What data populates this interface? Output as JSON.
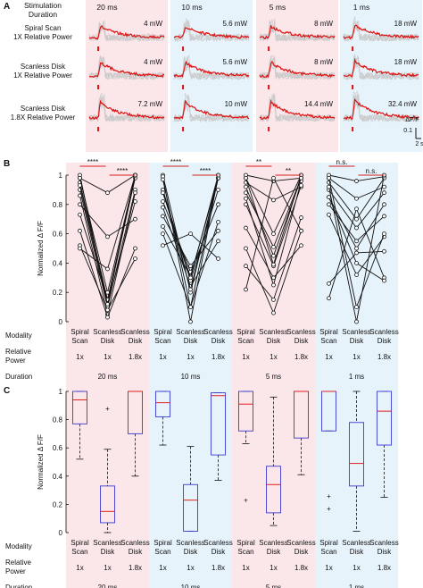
{
  "panel_letters": [
    "A",
    "B",
    "C"
  ],
  "band_colors": [
    "#fbe6ea",
    "#e6f3fb",
    "#fbe6ea",
    "#e6f3fb"
  ],
  "panel_a": {
    "header": [
      "Stimulation",
      "Duration"
    ],
    "durations": [
      "20 ms",
      "10 ms",
      "5 ms",
      "1 ms"
    ],
    "rows": [
      {
        "label": [
          "Spiral Scan",
          "1X Relative Power"
        ],
        "powers": [
          "4 mW",
          "5.6 mW",
          "8 mW",
          "18 mW"
        ]
      },
      {
        "label": [
          "Scanless Disk",
          "1X Relative Power"
        ],
        "powers": [
          "4 mW",
          "5.6 mW",
          "8 mW",
          "18 mW"
        ]
      },
      {
        "label": [
          "Scanless Disk",
          "1.8X Relative Power"
        ],
        "powers": [
          "7.2 mW",
          "10 mW",
          "14.4 mW",
          "32.4 mW"
        ]
      }
    ],
    "scale_y": "ΔF/F",
    "scale_y_value": "0.1",
    "scale_x": "2 s",
    "trace_color": "#dd1111",
    "bg_trace_color": "#c9c9c9"
  },
  "footer": {
    "modality_label": "Modality",
    "relpower_label": [
      "Relative",
      "Power"
    ],
    "duration_label": "Duration",
    "modality": [
      [
        "Spiral",
        "Scan"
      ],
      [
        "Scanless",
        "Disk"
      ],
      [
        "Scanless",
        "Disk"
      ]
    ],
    "relpower": [
      "1x",
      "1x",
      "1.8x"
    ],
    "durations": [
      "20 ms",
      "10 ms",
      "5 ms",
      "1 ms"
    ]
  },
  "chart_data": [
    {
      "type": "line",
      "title": "",
      "ylabel": "Normalized Δ F/F",
      "ylim": [
        0,
        1
      ],
      "yticks": [
        0,
        0.2,
        0.4,
        0.6,
        0.8,
        1
      ],
      "groups": [
        "20 ms",
        "10 ms",
        "5 ms",
        "1 ms"
      ],
      "categories": [
        "Spiral Scan",
        "Scanless Disk 1x",
        "Scanless Disk 1.8x"
      ],
      "significance": [
        {
          "group": "20 ms",
          "pairs": [
            [
              "****",
              0,
              1
            ],
            [
              "****",
              1,
              2
            ]
          ]
        },
        {
          "group": "10 ms",
          "pairs": [
            [
              "****",
              0,
              1
            ],
            [
              "****",
              1,
              2
            ]
          ]
        },
        {
          "group": "5 ms",
          "pairs": [
            [
              "**",
              0,
              1
            ],
            [
              "**",
              1,
              2
            ]
          ]
        },
        {
          "group": "1 ms",
          "pairs": [
            [
              "n.s.",
              0,
              1
            ],
            [
              "n.s.",
              1,
              2
            ]
          ]
        }
      ],
      "cells": [
        [
          [
            1.0,
            0.12,
            1.0
          ],
          [
            0.98,
            0.88,
            1.0
          ],
          [
            0.95,
            0.15,
            0.98
          ],
          [
            0.9,
            0.1,
            0.9
          ],
          [
            0.86,
            0.05,
            0.88
          ],
          [
            0.8,
            0.58,
            0.7
          ],
          [
            0.73,
            0.15,
            1.0
          ],
          [
            0.62,
            0.03,
            0.5
          ],
          [
            0.52,
            0.08,
            0.43
          ],
          [
            0.98,
            0.2,
            1.0
          ],
          [
            0.93,
            0.12,
            0.82
          ],
          [
            0.5,
            0.36,
            1.0
          ]
        ],
        [
          [
            1.0,
            0.2,
            0.98
          ],
          [
            0.99,
            0.0,
            1.0
          ],
          [
            0.97,
            0.1,
            0.98
          ],
          [
            0.9,
            0.28,
            0.9
          ],
          [
            0.82,
            0.34,
            0.8
          ],
          [
            0.78,
            0.24,
            0.55
          ],
          [
            0.72,
            0.38,
            0.62
          ],
          [
            0.65,
            0.31,
            0.98
          ],
          [
            0.52,
            0.6,
            0.43
          ],
          [
            0.9,
            0.22,
            0.98
          ],
          [
            0.88,
            0.3,
            1.0
          ],
          [
            0.6,
            0.1,
            0.68
          ]
        ],
        [
          [
            1.0,
            0.96,
            0.98
          ],
          [
            0.98,
            0.6,
            1.0
          ],
          [
            0.95,
            0.83,
            0.92
          ],
          [
            0.88,
            0.51,
            0.98
          ],
          [
            0.84,
            0.25,
            0.96
          ],
          [
            0.8,
            0.38,
            0.93
          ],
          [
            0.64,
            0.3,
            0.52
          ],
          [
            0.5,
            0.06,
            0.62
          ],
          [
            0.38,
            0.15,
            0.71
          ],
          [
            0.22,
            0.98,
            0.62
          ],
          [
            0.98,
            0.39,
            1.0
          ],
          [
            0.92,
            0.45,
            0.98
          ]
        ],
        [
          [
            1.0,
            0.96,
            0.99
          ],
          [
            0.98,
            0.84,
            0.92
          ],
          [
            0.95,
            0.7,
            0.98
          ],
          [
            0.9,
            0.64,
            0.88
          ],
          [
            0.85,
            0.5,
            0.8
          ],
          [
            0.8,
            0.55,
            0.72
          ],
          [
            0.73,
            0.32,
            0.58
          ],
          [
            0.26,
            0.47,
            0.48
          ],
          [
            0.16,
            0.77,
            0.3
          ],
          [
            0.98,
            0.1,
            0.6
          ],
          [
            0.92,
            0.0,
            1.0
          ],
          [
            0.85,
            0.4,
            0.28
          ]
        ]
      ]
    },
    {
      "type": "box",
      "title": "",
      "ylabel": "Normalized Δ F/F",
      "ylim": [
        0,
        1
      ],
      "yticks": [
        0,
        0.2,
        0.4,
        0.6,
        0.8,
        1
      ],
      "groups": [
        "20 ms",
        "10 ms",
        "5 ms",
        "1 ms"
      ],
      "categories": [
        "Spiral Scan",
        "Scanless Disk 1x",
        "Scanless Disk 1.8x"
      ],
      "box_color": "#3a3ad0",
      "median_color": "#e02020",
      "boxes": [
        [
          {
            "wl": 0.52,
            "q1": 0.77,
            "med": 0.94,
            "q3": 1.0,
            "wh": 1.0,
            "out": []
          },
          {
            "wl": 0.0,
            "q1": 0.07,
            "med": 0.15,
            "q3": 0.33,
            "wh": 0.59,
            "out": [
              0.88
            ]
          },
          {
            "wl": 0.4,
            "q1": 0.7,
            "med": 1.0,
            "q3": 1.0,
            "wh": 1.0,
            "out": []
          }
        ],
        [
          {
            "wl": 0.62,
            "q1": 0.82,
            "med": 0.92,
            "q3": 1.0,
            "wh": 1.0,
            "out": []
          },
          {
            "wl": 0.01,
            "q1": 0.01,
            "med": 0.23,
            "q3": 0.34,
            "wh": 0.61,
            "out": []
          },
          {
            "wl": 0.37,
            "q1": 0.55,
            "med": 0.97,
            "q3": 0.99,
            "wh": 0.99,
            "out": []
          }
        ],
        [
          {
            "wl": 0.63,
            "q1": 0.72,
            "med": 0.91,
            "q3": 1.0,
            "wh": 1.0,
            "out": [
              0.23
            ]
          },
          {
            "wl": 0.05,
            "q1": 0.14,
            "med": 0.34,
            "q3": 0.47,
            "wh": 0.96,
            "out": []
          },
          {
            "wl": 0.41,
            "q1": 0.67,
            "med": 1.0,
            "q3": 1.0,
            "wh": 1.0,
            "out": []
          }
        ],
        [
          {
            "wl": 0.72,
            "q1": 0.72,
            "med": 1.0,
            "q3": 1.0,
            "wh": 1.0,
            "out": [
              0.26,
              0.17
            ]
          },
          {
            "wl": 0.01,
            "q1": 0.33,
            "med": 0.49,
            "q3": 0.78,
            "wh": 1.0,
            "out": []
          },
          {
            "wl": 0.25,
            "q1": 0.62,
            "med": 0.86,
            "q3": 1.0,
            "wh": 1.0,
            "out": []
          }
        ]
      ]
    }
  ]
}
